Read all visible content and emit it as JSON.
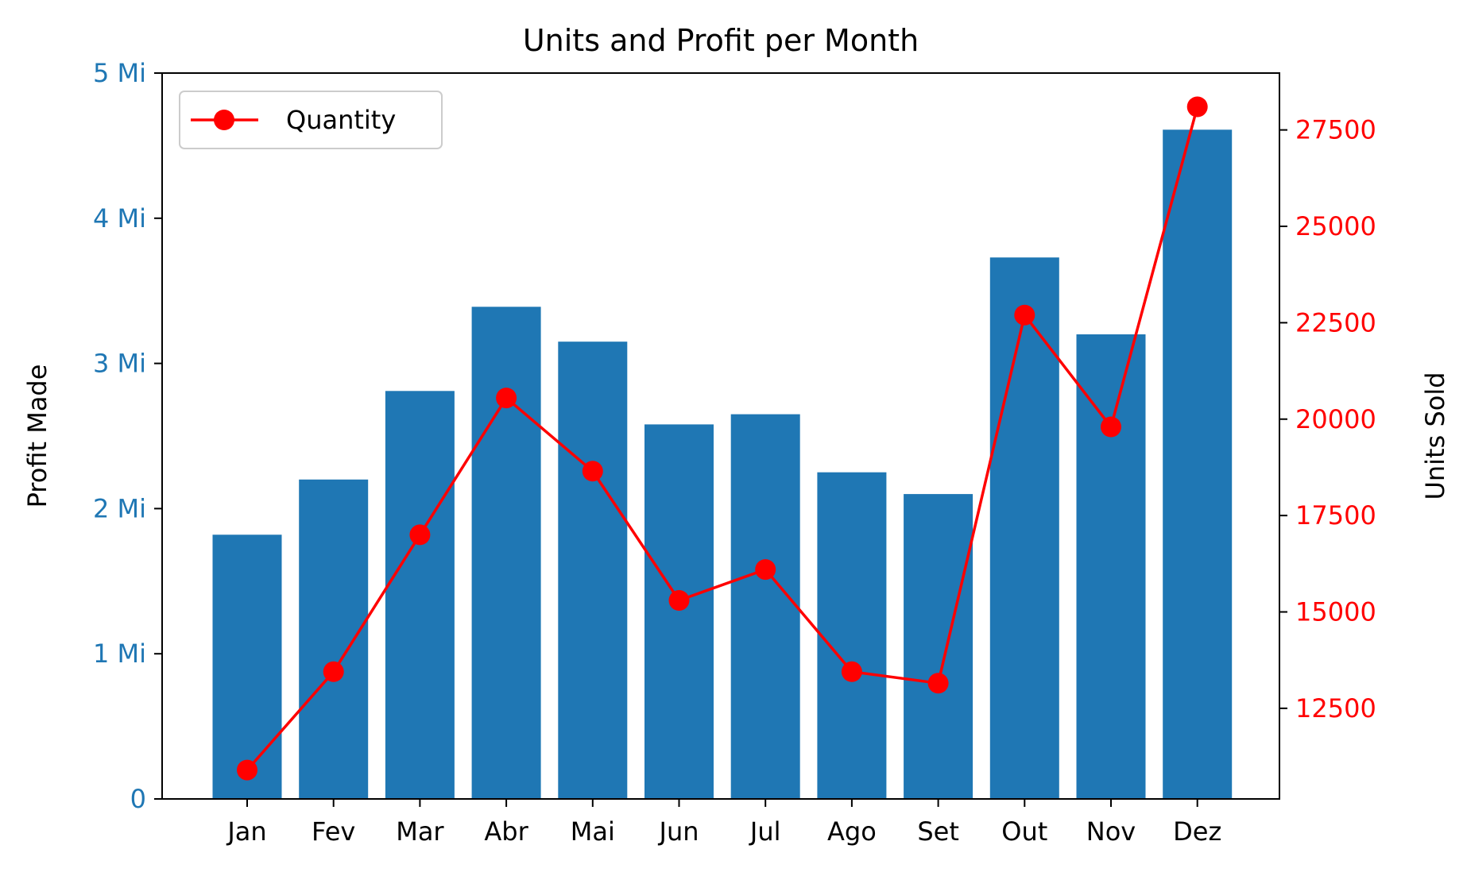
{
  "chart_data": {
    "type": "bar",
    "title": "Units and Profit per Month",
    "categories": [
      "Jan",
      "Fev",
      "Mar",
      "Abr",
      "Mai",
      "Jun",
      "Jul",
      "Ago",
      "Set",
      "Out",
      "Nov",
      "Dez"
    ],
    "series": [
      {
        "type": "bar",
        "axis": "left",
        "color": "#1f77b4",
        "values": [
          1.82,
          2.2,
          2.81,
          3.39,
          3.15,
          2.58,
          2.65,
          2.25,
          2.1,
          3.73,
          3.2,
          4.61
        ]
      },
      {
        "type": "line",
        "name": "Quantity",
        "axis": "right",
        "color": "#ff0000",
        "marker": "circle",
        "values": [
          10900,
          13450,
          17000,
          20550,
          18650,
          15300,
          16100,
          13450,
          13150,
          22700,
          19800,
          28100
        ]
      }
    ],
    "left_axis": {
      "label": "Profit Made",
      "range": [
        0,
        5
      ],
      "ticks": [
        0,
        1,
        2,
        3,
        4,
        5
      ],
      "tick_labels": [
        "0",
        "1 Mi",
        "2 Mi",
        "3 Mi",
        "4 Mi",
        "5 Mi"
      ],
      "color": "#1f77b4"
    },
    "right_axis": {
      "label": "Units Sold",
      "range": [
        10150,
        28975
      ],
      "ticks": [
        12500,
        15000,
        17500,
        20000,
        22500,
        25000,
        27500
      ],
      "tick_labels": [
        "12500",
        "15000",
        "17500",
        "20000",
        "22500",
        "25000",
        "27500"
      ],
      "color": "#ff0000"
    },
    "legend": {
      "position": "top-left",
      "entries": [
        "Quantity"
      ]
    },
    "grid": false
  }
}
